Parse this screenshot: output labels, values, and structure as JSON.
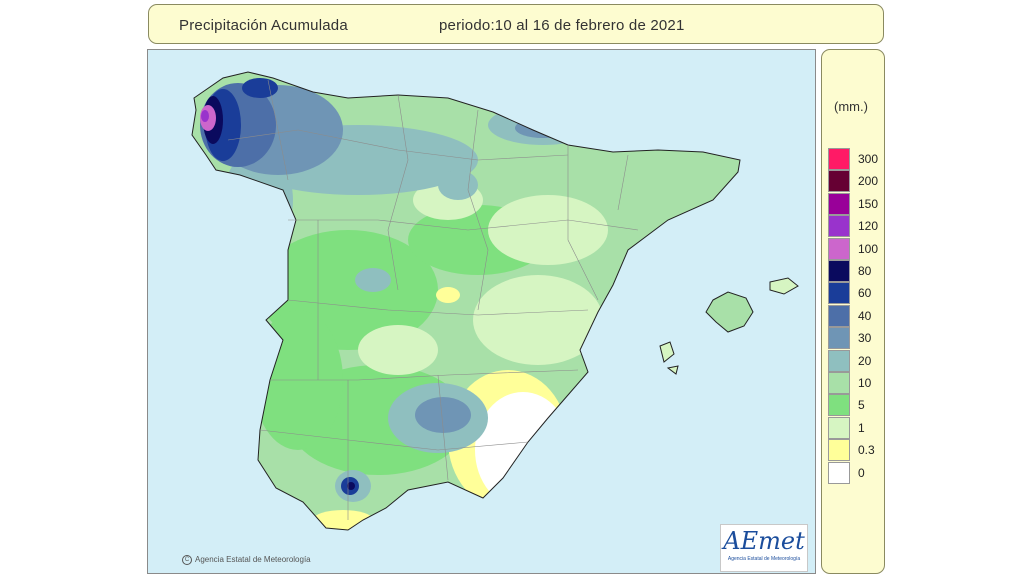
{
  "header": {
    "title": "Precipitación Acumulada",
    "period": "periodo:10 al 16 de febrero de 2021"
  },
  "map": {
    "copyright": "Agencia Estatal de Meteorología",
    "logo_text": "AEmet",
    "logo_subtext": "Agencia Estatal de Meteorología",
    "sea_color": "#d3eef7"
  },
  "legend": {
    "unit": "(mm.)",
    "classes": [
      {
        "label": "300",
        "color": "#ff1a66"
      },
      {
        "label": "200",
        "color": "#660033"
      },
      {
        "label": "150",
        "color": "#990099"
      },
      {
        "label": "120",
        "color": "#9933cc"
      },
      {
        "label": "100",
        "color": "#cc66cc"
      },
      {
        "label": "80",
        "color": "#0a0a5e"
      },
      {
        "label": "60",
        "color": "#1a3d99"
      },
      {
        "label": "40",
        "color": "#4d6fa8"
      },
      {
        "label": "30",
        "color": "#6f95b5"
      },
      {
        "label": "20",
        "color": "#8fbfbf"
      },
      {
        "label": "10",
        "color": "#a8e0a8"
      },
      {
        "label": "5",
        "color": "#7fe07f"
      },
      {
        "label": "1",
        "color": "#d6f5c2"
      },
      {
        "label": "0.3",
        "color": "#ffff99"
      },
      {
        "label": "0",
        "color": "#ffffff"
      }
    ]
  }
}
